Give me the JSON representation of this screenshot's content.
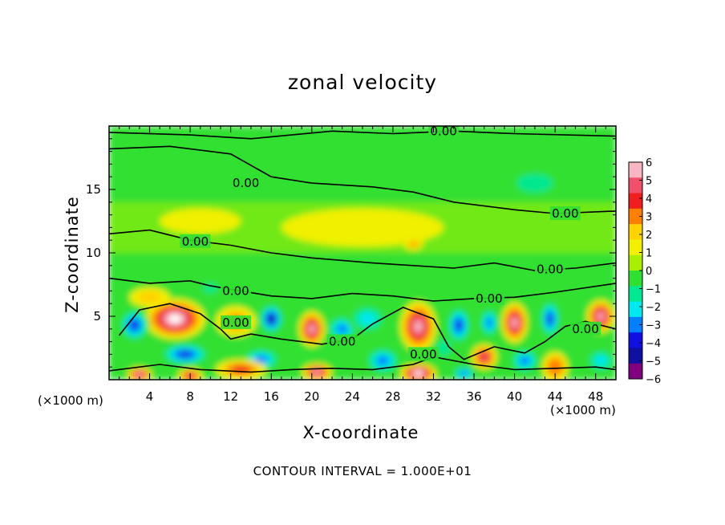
{
  "chart_data": {
    "type": "heatmap",
    "title": "zonal velocity",
    "xlabel": "X-coordinate",
    "ylabel": "Z-coordinate",
    "x_unit_left": "(×1000 m)",
    "x_unit_right": "(×1000 m)",
    "xlim": [
      0,
      50
    ],
    "ylim": [
      0,
      20
    ],
    "x_ticks": [
      4,
      8,
      12,
      16,
      20,
      24,
      28,
      32,
      36,
      40,
      44,
      48
    ],
    "y_ticks": [
      5,
      10,
      15
    ],
    "colorbar": {
      "ticks": [
        6,
        5,
        4,
        3,
        2,
        1,
        0,
        -1,
        -2,
        -3,
        -4,
        -5,
        -6
      ],
      "labels": [
        "6",
        "5",
        "4",
        "3",
        "2",
        "1",
        "0",
        "−1",
        "−2",
        "−3",
        "−4",
        "−5",
        "−6"
      ],
      "colors": [
        "#f7b6c2",
        "#f0506a",
        "#f01e1e",
        "#ff8000",
        "#ffd200",
        "#f0f000",
        "#a8f000",
        "#30e030",
        "#00e890",
        "#00e8f0",
        "#0080ff",
        "#1010e0",
        "#1010a0",
        "#800080"
      ]
    },
    "contour_level": "0.00",
    "contour_labels": [
      {
        "text": "0.00",
        "x": 33,
        "y": 19.6
      },
      {
        "text": "0.00",
        "x": 13.5,
        "y": 15.5
      },
      {
        "text": "0.00",
        "x": 45,
        "y": 13.1
      },
      {
        "text": "0.00",
        "x": 8.5,
        "y": 10.9
      },
      {
        "text": "0.00",
        "x": 43.5,
        "y": 8.7
      },
      {
        "text": "0.00",
        "x": 12.5,
        "y": 7.0
      },
      {
        "text": "0.00",
        "x": 37.5,
        "y": 6.4
      },
      {
        "text": "0.00",
        "x": 12.5,
        "y": 4.5
      },
      {
        "text": "0.00",
        "x": 23,
        "y": 3.0
      },
      {
        "text": "0.00",
        "x": 47,
        "y": 4.0
      },
      {
        "text": "0.00",
        "x": 31,
        "y": 2.0
      }
    ],
    "anomalies": [
      {
        "x": 6.5,
        "z": 4.8,
        "value": 7,
        "sx": 3.0,
        "sz": 1.6
      },
      {
        "x": 2.5,
        "z": 4.3,
        "value": -5,
        "sx": 1.5,
        "sz": 1.3
      },
      {
        "x": 12.5,
        "z": 4.6,
        "value": 3,
        "sx": 2.0,
        "sz": 1.2
      },
      {
        "x": 16.0,
        "z": 4.8,
        "value": -6,
        "sx": 1.2,
        "sz": 1.2
      },
      {
        "x": 20.0,
        "z": 4.0,
        "value": 6,
        "sx": 1.3,
        "sz": 1.4
      },
      {
        "x": 23.0,
        "z": 4.0,
        "value": -4,
        "sx": 1.6,
        "sz": 1.1
      },
      {
        "x": 30.5,
        "z": 4.2,
        "value": 6,
        "sx": 1.8,
        "sz": 2.0
      },
      {
        "x": 25.5,
        "z": 4.8,
        "value": -2.5,
        "sx": 2.0,
        "sz": 1.2
      },
      {
        "x": 34.5,
        "z": 4.3,
        "value": -5,
        "sx": 1.2,
        "sz": 1.5
      },
      {
        "x": 37.5,
        "z": 4.5,
        "value": -4,
        "sx": 1.0,
        "sz": 1.2
      },
      {
        "x": 40.0,
        "z": 4.5,
        "value": 6,
        "sx": 1.3,
        "sz": 1.6
      },
      {
        "x": 43.5,
        "z": 4.8,
        "value": -5,
        "sx": 1.0,
        "sz": 1.5
      },
      {
        "x": 48.5,
        "z": 5.0,
        "value": 6,
        "sx": 1.4,
        "sz": 1.3
      },
      {
        "x": 7.5,
        "z": 2.0,
        "value": -5,
        "sx": 2.5,
        "sz": 0.9
      },
      {
        "x": 15.0,
        "z": 1.6,
        "value": -4,
        "sx": 2.0,
        "sz": 0.9
      },
      {
        "x": 3.0,
        "z": 0.4,
        "value": 6,
        "sx": 1.2,
        "sz": 0.6
      },
      {
        "x": 8.0,
        "z": 0.3,
        "value": 5,
        "sx": 1.2,
        "sz": 0.6
      },
      {
        "x": 13.0,
        "z": 0.8,
        "value": 4,
        "sx": 2.5,
        "sz": 0.8
      },
      {
        "x": 20.5,
        "z": 0.6,
        "value": 6,
        "sx": 1.5,
        "sz": 0.7
      },
      {
        "x": 27.0,
        "z": 1.5,
        "value": -4,
        "sx": 1.8,
        "sz": 1.1
      },
      {
        "x": 30.5,
        "z": 0.5,
        "value": 7,
        "sx": 1.8,
        "sz": 0.8
      },
      {
        "x": 37.0,
        "z": 1.8,
        "value": 5,
        "sx": 1.3,
        "sz": 1.0
      },
      {
        "x": 41.0,
        "z": 1.5,
        "value": -4,
        "sx": 1.5,
        "sz": 1.0
      },
      {
        "x": 44.0,
        "z": 1.0,
        "value": 3.5,
        "sx": 1.3,
        "sz": 1.2
      },
      {
        "x": 48.5,
        "z": 1.5,
        "value": -3,
        "sx": 1.5,
        "sz": 1.0
      },
      {
        "x": 35.0,
        "z": 0.5,
        "value": -4,
        "sx": 1.2,
        "sz": 0.6
      },
      {
        "x": 33.0,
        "z": 2.5,
        "value": -1.5,
        "sx": 1.2,
        "sz": 1.0
      },
      {
        "x": 10.0,
        "z": 7.2,
        "value": -2,
        "sx": 1.2,
        "sz": 0.6
      },
      {
        "x": 4.0,
        "z": 6.5,
        "value": 2,
        "sx": 2.0,
        "sz": 0.8
      },
      {
        "x": 30.0,
        "z": 10.8,
        "value": 3,
        "sx": 1.0,
        "sz": 0.6
      },
      {
        "x": 9.0,
        "z": 12.5,
        "value": 1.5,
        "sx": 4.0,
        "sz": 1.0
      },
      {
        "x": 42.0,
        "z": 15.5,
        "value": -1.5,
        "sx": 3.0,
        "sz": 1.2
      },
      {
        "x": 25.0,
        "z": 12.0,
        "value": 1.0,
        "sx": 8.0,
        "sz": 1.5
      }
    ]
  },
  "labels": {
    "contour_interval": "CONTOUR INTERVAL = 1.000E+01"
  }
}
